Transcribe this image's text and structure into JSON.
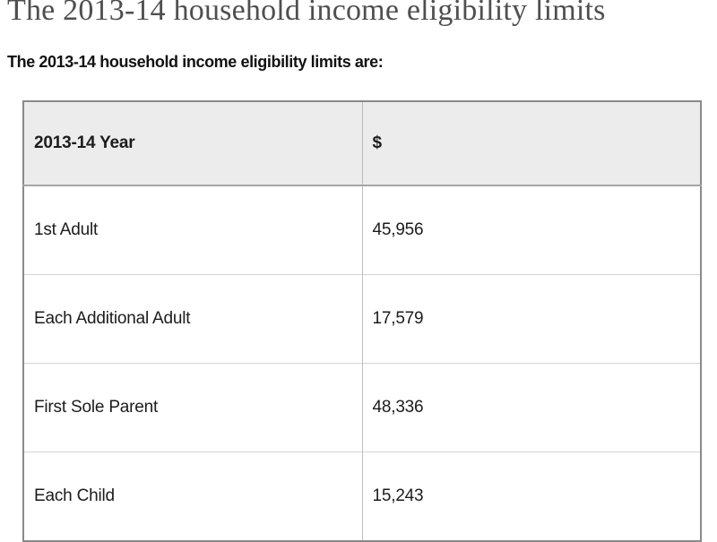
{
  "page": {
    "title": "The 2013-14 household income eligibility limits",
    "subtitle": "The 2013-14 household income eligibility limits are:"
  },
  "table": {
    "columns": [
      "2013-14 Year",
      "$"
    ],
    "rows": [
      {
        "label": "1st Adult",
        "value": "45,956"
      },
      {
        "label": "Each Additional Adult",
        "value": "17,579"
      },
      {
        "label": "First Sole Parent",
        "value": "48,336"
      },
      {
        "label": "Each Child",
        "value": "15,243"
      }
    ]
  },
  "colors": {
    "title_text": "#4f4f4f",
    "body_text": "#1c1c1c",
    "header_row_bg": "#ececec",
    "outer_border": "#8a8a8a",
    "inner_border": "#c4c4c4"
  }
}
